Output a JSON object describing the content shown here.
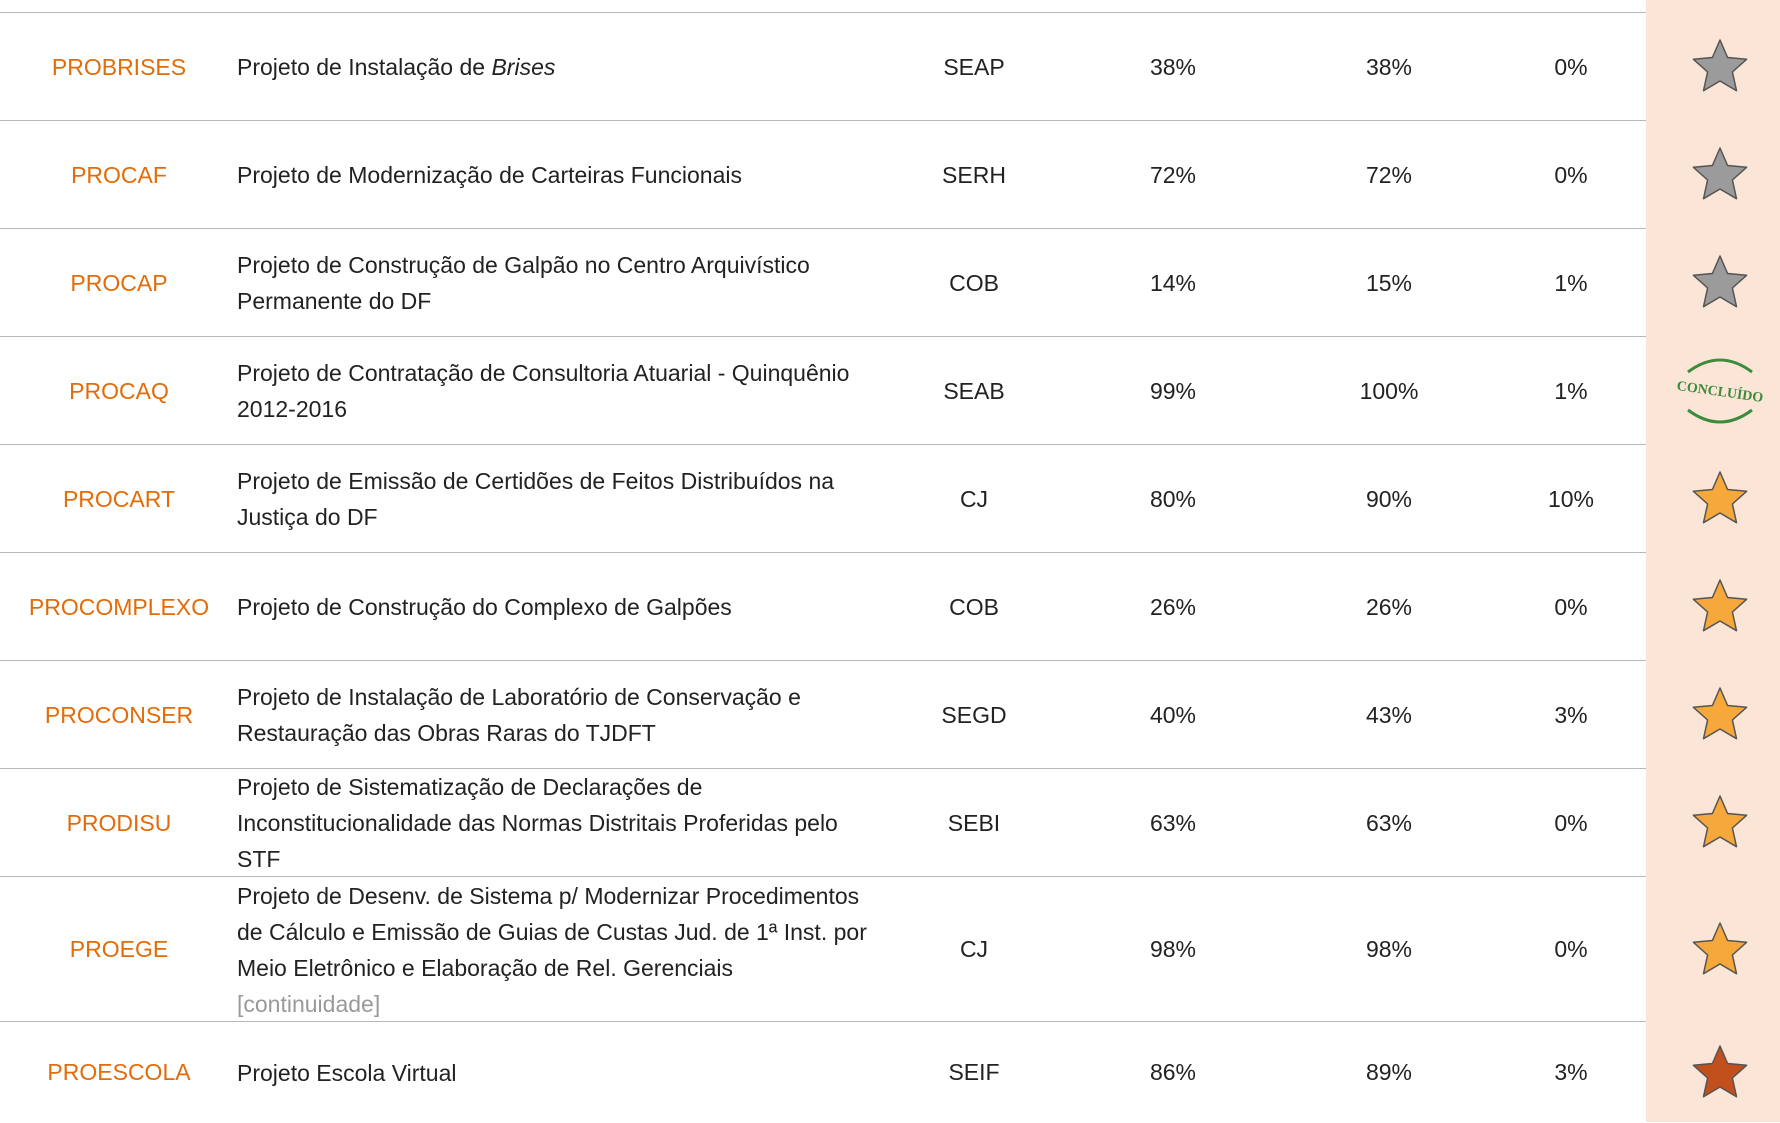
{
  "table": {
    "rows": [
      {
        "code": "PROBRISES",
        "name": "Projeto de Instalação de ",
        "name_italic": "Brises",
        "unit": "SEAP",
        "cells": [
          "38%",
          "38%",
          "0%"
        ],
        "star": "#9b9b9b"
      },
      {
        "code": "PROCAF",
        "name": "Projeto de Modernização de Carteiras Funcionais",
        "unit": "SERH",
        "cells": [
          "72%",
          "72%",
          "0%"
        ],
        "star": "#9b9b9b"
      },
      {
        "code": "PROCAP",
        "name": "Projeto de Construção de Galpão no Centro Arquivístico Permanente do DF",
        "unit": "COB",
        "cells": [
          "14%",
          "15%",
          "1%"
        ],
        "star": "#9b9b9b"
      },
      {
        "code": "PROCAQ",
        "name": "Projeto de Contratação de Consultoria Atuarial - Quinquênio 2012-2016",
        "unit": "SEAB",
        "cells": [
          "99%",
          "100%",
          "1%"
        ],
        "stamp": "CONCLUÍDO",
        "stamp_color": "#3d8b3d"
      },
      {
        "code": "PROCART",
        "name": "Projeto de Emissão de Certidões de Feitos Distribuídos na Justiça do DF",
        "unit": "CJ",
        "cells": [
          "80%",
          "90%",
          "10%"
        ],
        "star": "#f6a83a"
      },
      {
        "code": "PROCOMPLEXO",
        "name": "Projeto de Construção do Complexo de Galpões",
        "unit": "COB",
        "cells": [
          "26%",
          "26%",
          "0%"
        ],
        "star": "#f6a83a"
      },
      {
        "code": "PROCONSER",
        "name": "Projeto de Instalação de Laboratório de Conservação e Restauração das Obras Raras do TJDFT",
        "unit": "SEGD",
        "cells": [
          "40%",
          "43%",
          "3%"
        ],
        "star": "#f6a83a"
      },
      {
        "code": "PRODISU",
        "name": "Projeto de Sistematização de Declarações de Inconstitucionalidade das Normas Distritais Proferidas pelo STF",
        "unit": "SEBI",
        "cells": [
          "63%",
          "63%",
          "0%"
        ],
        "star": "#f6a83a"
      },
      {
        "code": "PROEGE",
        "name": "Projeto de Desenv. de Sistema p/ Modernizar Procedimentos de Cálculo e Emissão de Guias de Custas Jud. de 1ª Inst. por Meio Eletrônico e Elaboração de Rel. Gerenciais ",
        "note": "[continuidade]",
        "unit": "CJ",
        "cells": [
          "98%",
          "98%",
          "0%"
        ],
        "star": "#f6a83a"
      },
      {
        "code": "PROESCOLA",
        "name": "Projeto Escola Virtual",
        "unit": "SEIF",
        "cells": [
          "86%",
          "89%",
          "3%"
        ],
        "star": "#c2501c"
      }
    ]
  }
}
